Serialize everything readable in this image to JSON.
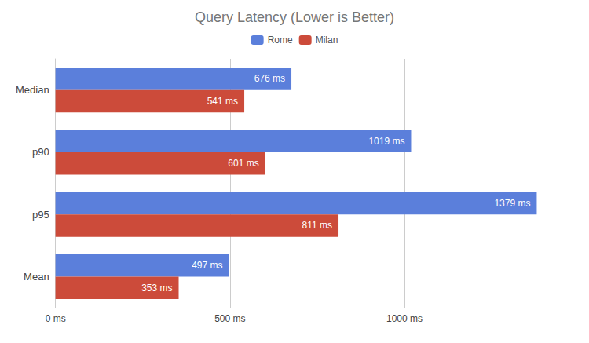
{
  "chart_data": {
    "type": "bar",
    "orientation": "horizontal",
    "title": "Query Latency (Lower is Better)",
    "categories": [
      "Median",
      "p90",
      "p95",
      "Mean"
    ],
    "series": [
      {
        "name": "Rome",
        "color": "#5b7fdb",
        "values": [
          676,
          1019,
          1379,
          497
        ],
        "value_labels": [
          "676 ms",
          "1019 ms",
          "1379 ms",
          "497 ms"
        ]
      },
      {
        "name": "Milan",
        "color": "#cc4b3a",
        "values": [
          541,
          601,
          811,
          353
        ],
        "value_labels": [
          "541 ms",
          "601 ms",
          "811 ms",
          "353 ms"
        ]
      }
    ],
    "xlim": [
      0,
      1450
    ],
    "xticks": [
      {
        "value": 0,
        "label": "0 ms"
      },
      {
        "value": 500,
        "label": "500 ms"
      },
      {
        "value": 1000,
        "label": "1000 ms"
      }
    ],
    "grid": true,
    "legend": "top",
    "data_labels": true
  }
}
